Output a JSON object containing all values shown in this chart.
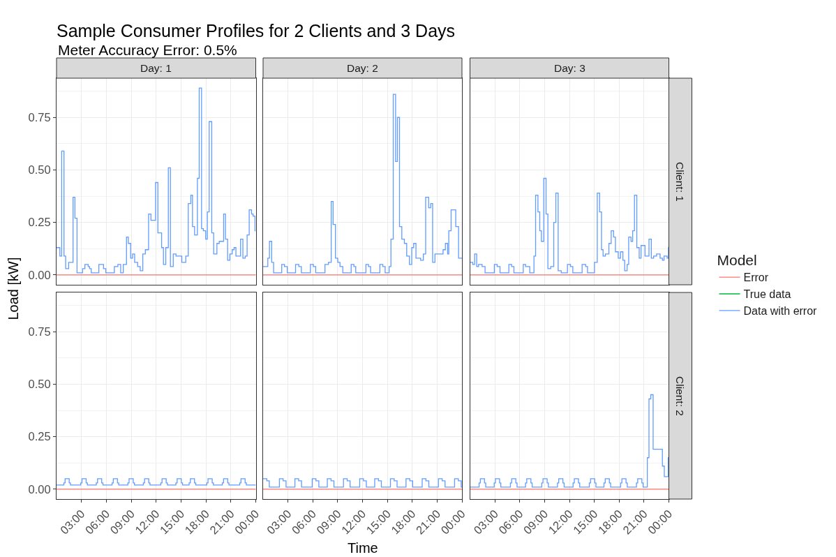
{
  "chart_data": [
    {
      "type": "step",
      "title": "Sample Consumer Profiles for 2 Clients and 3 Days",
      "subtitle": "Meter Accuracy Error: 0.5%",
      "ylabel": "Load [kW]",
      "legend_title": "Model",
      "legend": "right",
      "annotations": [
        "Day: 1"
      ],
      "tick_labels": "y",
      "grid": true,
      "xlim": [
        0,
        24
      ],
      "xticks": [
        3,
        6,
        9,
        12,
        15,
        18,
        21,
        24
      ],
      "ylim": [
        -0.047,
        0.937
      ],
      "yticks": [
        {
          "value": 0,
          "label": "0.00"
        },
        {
          "value": 0.25,
          "label": "0.25"
        },
        {
          "value": 0.5,
          "label": "0.50"
        },
        {
          "value": 0.75,
          "label": "0.75"
        }
      ],
      "series": [
        {
          "name": "Error",
          "color": "#f8766d",
          "x": [
            0,
            24
          ],
          "values": [
            0,
            0
          ]
        },
        {
          "name": "True data",
          "color": "#00ba38"
        },
        {
          "name": "Data with error",
          "color": "#619cff",
          "x": [
            0,
            0.4,
            0.62,
            0.9,
            1.1,
            1.46,
            1.99,
            2.22,
            2.47,
            3.14,
            3.42,
            3.81,
            3.98,
            4.18,
            5.1,
            5.66,
            5.94,
            6.97,
            7.39,
            7.73,
            8.04,
            8.43,
            8.65,
            8.93,
            9.16,
            9.41,
            9.77,
            10.08,
            10.39,
            10.7,
            11.09,
            11.37,
            11.93,
            12.21,
            12.66,
            12.88,
            13.16,
            13.47,
            13.72,
            14.06,
            14.39,
            15.09,
            15.57,
            15.87,
            16.18,
            16.38,
            16.63,
            16.97,
            17.19,
            17.47,
            17.69,
            17.97,
            18.17,
            18.39,
            18.7,
            18.93,
            19.32,
            19.6,
            20.13,
            20.35,
            20.61,
            20.88,
            21.16,
            21.39,
            21.61,
            22.17,
            22.45,
            22.73,
            22.96,
            23.21,
            23.49,
            23.68,
            23.91,
            24
          ],
          "values": [
            0.13,
            0.09,
            0.59,
            0.09,
            0.03,
            0.06,
            0.37,
            0.27,
            0.01,
            0.03,
            0.05,
            0.04,
            0.03,
            0.01,
            0.05,
            0.03,
            0.01,
            0.04,
            0.05,
            0.01,
            0.05,
            0.18,
            0.15,
            0.08,
            0.1,
            0.06,
            0.04,
            0.02,
            0.1,
            0.12,
            0.29,
            0.26,
            0.44,
            0.2,
            0.13,
            0.05,
            0.13,
            0.51,
            0.04,
            0.1,
            0.09,
            0.06,
            0.09,
            0.34,
            0.38,
            0.23,
            0.19,
            0.46,
            0.89,
            0.22,
            0.21,
            0.17,
            0.3,
            0.73,
            0.2,
            0.1,
            0.15,
            0.16,
            0.29,
            0.17,
            0.07,
            0.1,
            0.12,
            0.13,
            0.09,
            0.17,
            0.08,
            0.09,
            0.19,
            0.31,
            0.29,
            0.28,
            0.21,
            0.21
          ]
        }
      ]
    },
    {
      "type": "step",
      "annotations": [
        "Day: 2"
      ],
      "tick_labels": false,
      "grid": true,
      "xlim": [
        0,
        24
      ],
      "xticks": [
        3,
        6,
        9,
        12,
        15,
        18,
        21,
        24
      ],
      "ylim": [
        -0.047,
        0.937
      ],
      "yticks": [
        0,
        0.25,
        0.5,
        0.75
      ],
      "series": [
        {
          "color": "#f8766d",
          "x": [
            0,
            24
          ],
          "values": [
            0,
            0
          ]
        },
        {
          "color": "#619cff",
          "x": [
            0,
            0.57,
            0.77,
            1.04,
            1.27,
            2.25,
            2.58,
            2.92,
            3.92,
            4.31,
            4.62,
            5.71,
            6.07,
            6.35,
            7.47,
            7.89,
            8.22,
            8.45,
            8.73,
            9.01,
            9.28,
            9.62,
            10.63,
            10.96,
            11.18,
            12.41,
            12.72,
            12.97,
            14.09,
            14.45,
            14.73,
            15.21,
            15.43,
            15.71,
            15.99,
            16.21,
            16.46,
            16.74,
            17.05,
            17.33,
            17.66,
            17.94,
            18.17,
            18.45,
            19.01,
            19.34,
            19.62,
            19.98,
            20.23,
            20.46,
            20.74,
            21.72,
            22.0,
            22.27,
            22.41,
            22.69,
            23.25,
            23.59,
            24
          ],
          "values": [
            0.04,
            0.08,
            0.16,
            0.06,
            0.01,
            0.05,
            0.04,
            0.01,
            0.05,
            0.04,
            0.01,
            0.05,
            0.04,
            0.01,
            0.05,
            0.06,
            0.35,
            0.24,
            0.08,
            0.06,
            0.04,
            0.01,
            0.05,
            0.04,
            0.01,
            0.05,
            0.04,
            0.01,
            0.05,
            0.04,
            0.01,
            0.04,
            0.17,
            0.86,
            0.54,
            0.75,
            0.23,
            0.17,
            0.15,
            0.09,
            0.05,
            0.13,
            0.15,
            0.08,
            0.07,
            0.1,
            0.37,
            0.32,
            0.34,
            0.06,
            0.1,
            0.12,
            0.15,
            0.1,
            0.21,
            0.31,
            0.23,
            0.08,
            0.08
          ]
        }
      ]
    },
    {
      "type": "step",
      "annotations": [
        "Day: 3",
        "Client: 1"
      ],
      "tick_labels": false,
      "grid": true,
      "xlim": [
        0,
        24
      ],
      "xticks": [
        3,
        6,
        9,
        12,
        15,
        18,
        21,
        24
      ],
      "ylim": [
        -0.047,
        0.937
      ],
      "yticks": [
        0,
        0.25,
        0.5,
        0.75
      ],
      "series": [
        {
          "color": "#f8766d",
          "x": [
            0,
            24
          ],
          "values": [
            0,
            0
          ]
        },
        {
          "color": "#619cff",
          "x": [
            0,
            0.33,
            0.56,
            0.81,
            1.03,
            1.46,
            1.82,
            2.94,
            3.28,
            3.62,
            4.69,
            5.02,
            5.3,
            6.43,
            6.71,
            7.21,
            7.72,
            7.92,
            8.2,
            8.42,
            8.62,
            8.9,
            9.18,
            9.4,
            9.74,
            10.11,
            10.36,
            10.64,
            11.01,
            11.76,
            12.13,
            12.41,
            13.53,
            13.96,
            14.18,
            15.02,
            15.36,
            15.64,
            15.87,
            16.06,
            16.34,
            16.76,
            17.04,
            17.33,
            17.55,
            17.89,
            18.17,
            18.45,
            18.67,
            18.96,
            19.15,
            19.43,
            19.63,
            19.85,
            20.13,
            20.42,
            20.64,
            21.12,
            21.6,
            21.88,
            22.16,
            22.52,
            22.94,
            23.22,
            23.42,
            23.79,
            23.95,
            24
          ],
          "values": [
            0.06,
            0.05,
            0.1,
            0.04,
            0.05,
            0.04,
            0.01,
            0.05,
            0.04,
            0.01,
            0.05,
            0.04,
            0.01,
            0.05,
            0.04,
            0.01,
            0.09,
            0.38,
            0.3,
            0.21,
            0.16,
            0.46,
            0.29,
            0.03,
            0.04,
            0.25,
            0.39,
            0.02,
            0.01,
            0.05,
            0.04,
            0.01,
            0.05,
            0.04,
            0.01,
            0.06,
            0.39,
            0.3,
            0.12,
            0.09,
            0.1,
            0.15,
            0.21,
            0.18,
            0.11,
            0.08,
            0.11,
            0.07,
            0.02,
            0.05,
            0.18,
            0.16,
            0.21,
            0.38,
            0.13,
            0.08,
            0.14,
            0.09,
            0.17,
            0.08,
            0.09,
            0.1,
            0.08,
            0.07,
            0.09,
            0.08,
            0.13,
            0.13
          ]
        }
      ]
    },
    {
      "type": "step",
      "tick_labels": true,
      "grid": true,
      "xlim": [
        0,
        24
      ],
      "xticks": [
        {
          "value": 3,
          "label": "03:00"
        },
        {
          "value": 6,
          "label": "06:00"
        },
        {
          "value": 9,
          "label": "09:00"
        },
        {
          "value": 12,
          "label": "12:00"
        },
        {
          "value": 15,
          "label": "15:00"
        },
        {
          "value": 18,
          "label": "18:00"
        },
        {
          "value": 21,
          "label": "21:00"
        },
        {
          "value": 24,
          "label": "00:00"
        }
      ],
      "ylim": [
        -0.047,
        0.937
      ],
      "yticks": [
        {
          "value": 0,
          "label": "0.00"
        },
        {
          "value": 0.25,
          "label": "0.25"
        },
        {
          "value": 0.5,
          "label": "0.50"
        },
        {
          "value": 0.75,
          "label": "0.75"
        }
      ],
      "series": [
        {
          "color": "#f8766d",
          "x": [
            0,
            24
          ],
          "values": [
            0,
            0
          ]
        },
        {
          "color": "#619cff",
          "x": [
            0,
            0.88,
            1.03,
            1.53,
            1.68,
            2.92,
            3.07,
            3.57,
            3.72,
            4.79,
            4.94,
            5.44,
            5.59,
            6.69,
            6.84,
            7.34,
            7.49,
            8.59,
            8.74,
            9.24,
            9.39,
            10.46,
            10.61,
            11.11,
            11.26,
            12.56,
            12.71,
            13.21,
            13.36,
            14.38,
            14.53,
            15.03,
            15.18,
            15.97,
            16.12,
            16.62,
            16.77,
            18.1,
            18.25,
            18.75,
            18.9,
            19.97,
            20.12,
            20.62,
            20.77,
            22.07,
            22.22,
            22.72,
            22.87,
            24
          ],
          "values": [
            0.02,
            0.03,
            0.05,
            0.03,
            0.02,
            0.03,
            0.05,
            0.03,
            0.02,
            0.03,
            0.05,
            0.03,
            0.02,
            0.03,
            0.05,
            0.03,
            0.02,
            0.03,
            0.05,
            0.03,
            0.02,
            0.03,
            0.05,
            0.03,
            0.02,
            0.03,
            0.05,
            0.03,
            0.02,
            0.03,
            0.05,
            0.03,
            0.02,
            0.03,
            0.05,
            0.03,
            0.02,
            0.03,
            0.05,
            0.03,
            0.02,
            0.03,
            0.05,
            0.03,
            0.02,
            0.03,
            0.05,
            0.03,
            0.02,
            0.02
          ]
        }
      ]
    },
    {
      "type": "step",
      "xlabel": "Time",
      "tick_labels": "x",
      "grid": true,
      "xlim": [
        0,
        24
      ],
      "xticks": [
        {
          "value": 3,
          "label": "03:00"
        },
        {
          "value": 6,
          "label": "06:00"
        },
        {
          "value": 9,
          "label": "09:00"
        },
        {
          "value": 12,
          "label": "12:00"
        },
        {
          "value": 15,
          "label": "15:00"
        },
        {
          "value": 18,
          "label": "18:00"
        },
        {
          "value": 21,
          "label": "21:00"
        },
        {
          "value": 24,
          "label": "00:00"
        }
      ],
      "ylim": [
        -0.047,
        0.937
      ],
      "yticks": [
        0,
        0.25,
        0.5,
        0.75
      ],
      "series": [
        {
          "color": "#f8766d",
          "x": [
            0,
            24
          ],
          "values": [
            0,
            0
          ]
        },
        {
          "color": "#619cff",
          "x": [
            0,
            0.45,
            0.75,
            1.97,
            2.42,
            2.77,
            3.84,
            4.29,
            4.64,
            5.93,
            6.38,
            6.73,
            7.75,
            8.2,
            8.55,
            9.7,
            10.15,
            10.5,
            11.66,
            12.11,
            12.46,
            13.47,
            13.92,
            14.27,
            15.37,
            15.82,
            16.17,
            17.25,
            17.7,
            18.05,
            19.2,
            19.65,
            20.0,
            21.16,
            21.61,
            21.96,
            23.11,
            23.56,
            23.91,
            24
          ],
          "values": [
            0.05,
            0.04,
            0.01,
            0.05,
            0.04,
            0.01,
            0.05,
            0.04,
            0.01,
            0.05,
            0.04,
            0.01,
            0.05,
            0.04,
            0.01,
            0.05,
            0.04,
            0.01,
            0.05,
            0.04,
            0.01,
            0.05,
            0.04,
            0.01,
            0.05,
            0.04,
            0.01,
            0.05,
            0.04,
            0.01,
            0.05,
            0.04,
            0.01,
            0.05,
            0.04,
            0.01,
            0.05,
            0.04,
            0.01,
            0.01
          ]
        }
      ]
    },
    {
      "type": "step",
      "annotations": [
        "Client: 2"
      ],
      "tick_labels": "x",
      "grid": true,
      "xlim": [
        0,
        24
      ],
      "xticks": [
        {
          "value": 3,
          "label": "03:00"
        },
        {
          "value": 6,
          "label": "06:00"
        },
        {
          "value": 9,
          "label": "09:00"
        },
        {
          "value": 12,
          "label": "12:00"
        },
        {
          "value": 15,
          "label": "15:00"
        },
        {
          "value": 18,
          "label": "18:00"
        },
        {
          "value": 21,
          "label": "21:00"
        },
        {
          "value": 24,
          "label": "00:00"
        }
      ],
      "ylim": [
        -0.047,
        0.937
      ],
      "yticks": [
        0,
        0.25,
        0.5,
        0.75
      ],
      "series": [
        {
          "color": "#f8766d",
          "x": [
            0,
            24
          ],
          "values": [
            0,
            0
          ]
        },
        {
          "color": "#619cff",
          "x": [
            0,
            1.1,
            1.25,
            1.75,
            1.9,
            2.92,
            3.07,
            3.57,
            3.72,
            4.88,
            5.03,
            5.53,
            5.68,
            6.7,
            6.85,
            7.35,
            7.5,
            8.66,
            8.81,
            9.31,
            9.46,
            10.56,
            10.71,
            11.21,
            11.36,
            12.44,
            12.59,
            13.09,
            13.24,
            14.4,
            14.55,
            15.05,
            15.2,
            16.17,
            16.32,
            16.82,
            16.97,
            18.18,
            18.33,
            18.83,
            18.98,
            20.09,
            20.24,
            20.74,
            20.89,
            21.4,
            21.6,
            21.82,
            22.1,
            23.22,
            23.45,
            23.92,
            24
          ],
          "values": [
            0.01,
            0.03,
            0.05,
            0.03,
            0.01,
            0.03,
            0.05,
            0.03,
            0.01,
            0.03,
            0.05,
            0.03,
            0.01,
            0.03,
            0.05,
            0.03,
            0.01,
            0.03,
            0.05,
            0.03,
            0.01,
            0.03,
            0.05,
            0.03,
            0.01,
            0.03,
            0.05,
            0.03,
            0.01,
            0.03,
            0.05,
            0.03,
            0.01,
            0.03,
            0.05,
            0.03,
            0.01,
            0.03,
            0.05,
            0.03,
            0.01,
            0.03,
            0.05,
            0.03,
            0.01,
            0.15,
            0.43,
            0.45,
            0.19,
            0.11,
            0.06,
            0.15,
            0.15
          ]
        }
      ]
    }
  ]
}
